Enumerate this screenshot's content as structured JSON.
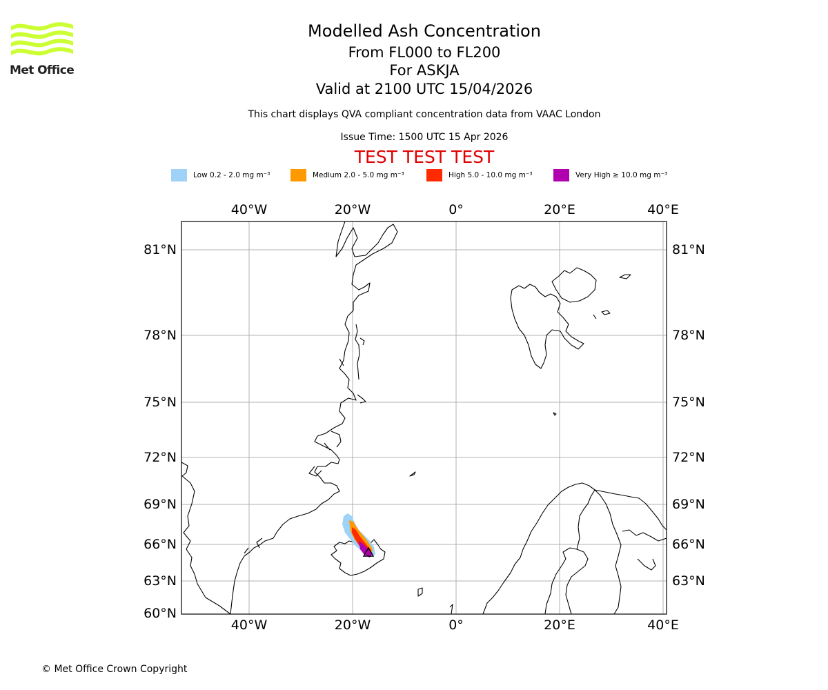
{
  "header": {
    "title": "Modelled Ash Concentration",
    "level_range": "From FL000 to FL200",
    "volcano": "For ASKJA",
    "valid_time": "Valid at 2100 UTC 15/04/2026",
    "description": "This chart displays QVA compliant concentration data from VAAC London",
    "issue_time": "Issue Time: 1500 UTC 15 Apr 2026",
    "test_banner": "TEST TEST TEST"
  },
  "logo": {
    "name": "Met Office",
    "color": "#ccff33"
  },
  "legend": [
    {
      "label": "Low 0.2 - 2.0 mg m⁻³",
      "color": "#9fd2f7"
    },
    {
      "label": "Medium 2.0 - 5.0 mg m⁻³",
      "color": "#ff9900"
    },
    {
      "label": "High 5.0 - 10.0 mg m⁻³",
      "color": "#ff2a00"
    },
    {
      "label": "Very High ≥ 10.0 mg m⁻³",
      "color": "#b000b0"
    }
  ],
  "axes": {
    "lon_labels": [
      "40°W",
      "20°W",
      "0°",
      "20°E",
      "40°E"
    ],
    "lat_labels": [
      "81°N",
      "78°N",
      "75°N",
      "72°N",
      "69°N",
      "66°N",
      "63°N",
      "60°N"
    ]
  },
  "map": {
    "volcano_marker": "volcano-triangle",
    "features": [
      "Greenland",
      "Iceland",
      "Svalbard",
      "Scandinavia",
      "Jan Mayen",
      "Faroe Islands"
    ]
  },
  "footer": {
    "copyright": "© Met Office Crown Copyright"
  }
}
